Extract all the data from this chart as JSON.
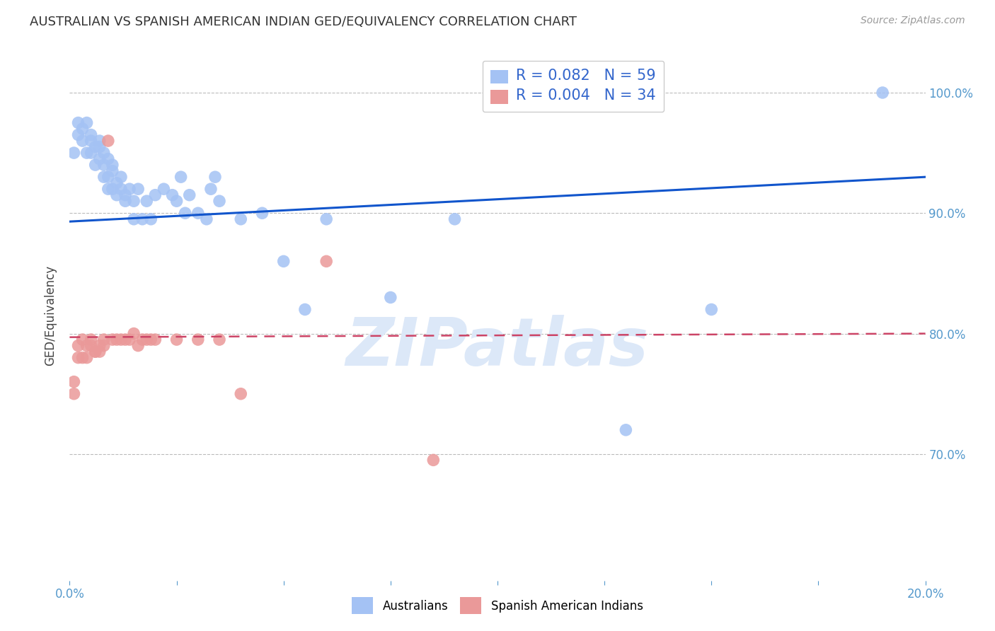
{
  "title": "AUSTRALIAN VS SPANISH AMERICAN INDIAN GED/EQUIVALENCY CORRELATION CHART",
  "source": "Source: ZipAtlas.com",
  "ylabel": "GED/Equivalency",
  "ytick_labels": [
    "100.0%",
    "90.0%",
    "80.0%",
    "70.0%"
  ],
  "ytick_values": [
    1.0,
    0.9,
    0.8,
    0.7
  ],
  "xlim": [
    0.0,
    0.2
  ],
  "ylim": [
    0.595,
    1.035
  ],
  "legend_blue_R": "0.082",
  "legend_blue_N": "59",
  "legend_pink_R": "0.004",
  "legend_pink_N": "34",
  "legend_label_blue": "Australians",
  "legend_label_pink": "Spanish American Indians",
  "blue_color": "#a4c2f4",
  "pink_color": "#ea9999",
  "line_blue_color": "#1155cc",
  "line_pink_color": "#cc4466",
  "watermark_text": "ZIPatlas",
  "watermark_color": "#dce8f8",
  "blue_line_x0": 0.0,
  "blue_line_y0": 0.893,
  "blue_line_x1": 0.2,
  "blue_line_y1": 0.93,
  "pink_line_x0": 0.0,
  "pink_line_y0": 0.797,
  "pink_line_x1": 0.2,
  "pink_line_y1": 0.8,
  "blue_x": [
    0.001,
    0.002,
    0.002,
    0.003,
    0.003,
    0.004,
    0.004,
    0.005,
    0.005,
    0.005,
    0.006,
    0.006,
    0.007,
    0.007,
    0.007,
    0.008,
    0.008,
    0.008,
    0.009,
    0.009,
    0.009,
    0.01,
    0.01,
    0.01,
    0.011,
    0.011,
    0.012,
    0.012,
    0.013,
    0.013,
    0.014,
    0.015,
    0.015,
    0.016,
    0.017,
    0.018,
    0.019,
    0.02,
    0.022,
    0.024,
    0.025,
    0.026,
    0.027,
    0.028,
    0.03,
    0.032,
    0.033,
    0.034,
    0.035,
    0.04,
    0.045,
    0.05,
    0.055,
    0.06,
    0.075,
    0.09,
    0.13,
    0.15,
    0.19
  ],
  "blue_y": [
    0.95,
    0.965,
    0.975,
    0.97,
    0.96,
    0.975,
    0.95,
    0.96,
    0.965,
    0.95,
    0.955,
    0.94,
    0.96,
    0.955,
    0.945,
    0.93,
    0.94,
    0.95,
    0.92,
    0.93,
    0.945,
    0.92,
    0.935,
    0.94,
    0.925,
    0.915,
    0.92,
    0.93,
    0.91,
    0.915,
    0.92,
    0.895,
    0.91,
    0.92,
    0.895,
    0.91,
    0.895,
    0.915,
    0.92,
    0.915,
    0.91,
    0.93,
    0.9,
    0.915,
    0.9,
    0.895,
    0.92,
    0.93,
    0.91,
    0.895,
    0.9,
    0.86,
    0.82,
    0.895,
    0.83,
    0.895,
    0.72,
    0.82,
    1.0
  ],
  "pink_x": [
    0.001,
    0.001,
    0.002,
    0.002,
    0.003,
    0.003,
    0.004,
    0.004,
    0.005,
    0.005,
    0.006,
    0.006,
    0.007,
    0.007,
    0.008,
    0.008,
    0.009,
    0.01,
    0.011,
    0.012,
    0.013,
    0.014,
    0.015,
    0.016,
    0.017,
    0.018,
    0.019,
    0.02,
    0.025,
    0.03,
    0.035,
    0.04,
    0.06,
    0.085
  ],
  "pink_y": [
    0.76,
    0.75,
    0.79,
    0.78,
    0.795,
    0.78,
    0.79,
    0.78,
    0.795,
    0.79,
    0.785,
    0.785,
    0.79,
    0.785,
    0.795,
    0.79,
    0.96,
    0.795,
    0.795,
    0.795,
    0.795,
    0.795,
    0.8,
    0.79,
    0.795,
    0.795,
    0.795,
    0.795,
    0.795,
    0.795,
    0.795,
    0.75,
    0.86,
    0.695
  ]
}
